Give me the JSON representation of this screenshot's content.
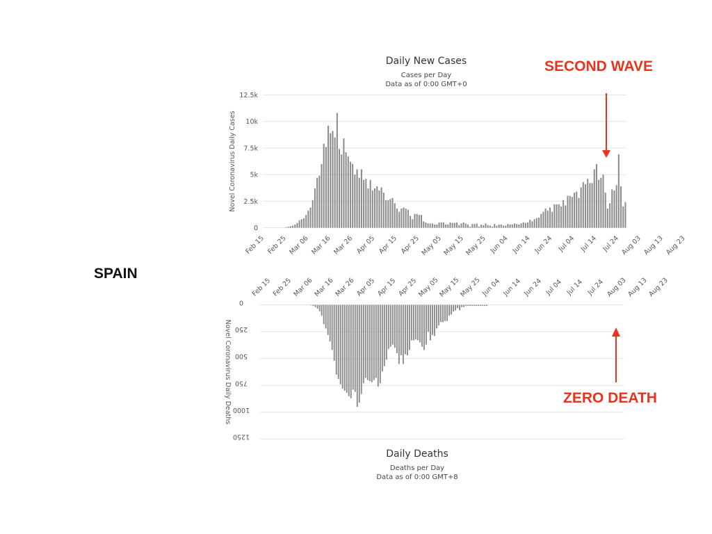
{
  "slide": {
    "country_label": "SPAIN",
    "callout_top": "SECOND WAVE",
    "callout_bottom": "ZERO DEATH",
    "accent_color": "#e8341c"
  },
  "chart_data": [
    {
      "type": "bar",
      "title": "Daily New Cases",
      "subtitle_lines": [
        "Cases per Day",
        "Data as of 0:00 GMT+0"
      ],
      "ylabel": "Novel Coronavirus Daily Cases",
      "ylim": [
        0,
        12500
      ],
      "yticks": [
        0,
        2500,
        5000,
        7500,
        10000,
        12500
      ],
      "ytick_labels": [
        "0",
        "2.5k",
        "5k",
        "7.5k",
        "10k",
        "12.5k"
      ],
      "xtick_labels": [
        "Feb 15",
        "Feb 25",
        "Mar 06",
        "Mar 16",
        "Mar 26",
        "Apr 05",
        "Apr 15",
        "Apr 25",
        "May 05",
        "May 15",
        "May 25",
        "Jun 04",
        "Jun 14",
        "Jun 24",
        "Jul 04",
        "Jul 14",
        "Jul 24",
        "Aug 03",
        "Aug 13",
        "Aug 23"
      ],
      "start_date": "2020-02-15",
      "values": [
        0,
        0,
        0,
        0,
        0,
        0,
        0,
        0,
        0,
        0,
        50,
        100,
        150,
        200,
        300,
        450,
        700,
        800,
        900,
        1200,
        1600,
        1900,
        2600,
        3700,
        4700,
        4900,
        6000,
        7900,
        7600,
        9600,
        8900,
        9100,
        8500,
        10800,
        7400,
        6900,
        8400,
        7100,
        6700,
        6200,
        6000,
        5000,
        5500,
        4700,
        5500,
        4500,
        4600,
        3700,
        4500,
        3500,
        3700,
        3900,
        3500,
        3800,
        3300,
        2600,
        2600,
        2700,
        2800,
        2300,
        1800,
        1500,
        1800,
        1900,
        1800,
        1700,
        1100,
        800,
        1300,
        1300,
        1200,
        1200,
        600,
        500,
        400,
        400,
        400,
        300,
        300,
        500,
        500,
        500,
        300,
        300,
        500,
        450,
        450,
        500,
        250,
        400,
        500,
        400,
        300,
        100,
        350,
        350,
        400,
        100,
        300,
        250,
        400,
        250,
        200,
        100,
        350,
        200,
        300,
        300,
        200,
        200,
        350,
        300,
        300,
        400,
        350,
        300,
        400,
        500,
        450,
        500,
        750,
        600,
        800,
        900,
        950,
        1300,
        1500,
        1800,
        1600,
        1900,
        1500,
        2200,
        2200,
        2200,
        2000,
        2600,
        2100,
        3000,
        3000,
        2900,
        3300,
        3400,
        2800,
        3800,
        4300,
        4100,
        4600,
        4200,
        4200,
        5500,
        6000,
        4500,
        4700,
        5000,
        3300,
        1800,
        2300,
        3600,
        3500,
        4000,
        6900,
        3900,
        2000,
        2400
      ]
    },
    {
      "type": "bar",
      "title": "Daily Deaths",
      "subtitle_lines": [
        "Deaths per Day",
        "Data as of 0:00 GMT+8"
      ],
      "ylabel": "Novel Coronavirus Daily Deaths",
      "ylim": [
        0,
        1250
      ],
      "yticks": [
        0,
        250,
        500,
        750,
        1000,
        1250
      ],
      "ytick_labels": [
        "0",
        "250",
        "500",
        "750",
        "1000",
        "1250"
      ],
      "inverted": true,
      "xtick_labels": [
        "Feb 15",
        "Feb 25",
        "Mar 06",
        "Mar 16",
        "Mar 26",
        "Apr 05",
        "Apr 15",
        "Apr 25",
        "May 05",
        "May 15",
        "May 25",
        "Jun 04",
        "Jun 14",
        "Jun 24",
        "Jul 04",
        "Jul 14",
        "Jul 24",
        "Aug 03",
        "Aug 13",
        "Aug 23"
      ],
      "start_date": "2020-02-15",
      "values": [
        0,
        0,
        0,
        0,
        0,
        0,
        0,
        0,
        0,
        0,
        0,
        0,
        0,
        0,
        0,
        0,
        0,
        0,
        0,
        0,
        0,
        0,
        0,
        0,
        5,
        10,
        20,
        35,
        60,
        100,
        180,
        220,
        280,
        340,
        420,
        520,
        650,
        690,
        740,
        780,
        800,
        820,
        850,
        870,
        790,
        810,
        950,
        910,
        830,
        730,
        680,
        700,
        710,
        720,
        700,
        680,
        760,
        730,
        620,
        570,
        510,
        410,
        390,
        370,
        400,
        450,
        550,
        470,
        550,
        460,
        470,
        420,
        330,
        330,
        320,
        330,
        350,
        390,
        420,
        370,
        250,
        330,
        280,
        290,
        220,
        190,
        160,
        160,
        150,
        150,
        100,
        90,
        60,
        50,
        30,
        50,
        20,
        20,
        10,
        10,
        10,
        10,
        10,
        10,
        10,
        10,
        10,
        10,
        10,
        0,
        0,
        0,
        0,
        0,
        0,
        0,
        0,
        0,
        0,
        0,
        0,
        0,
        0,
        0,
        0,
        0,
        0,
        0,
        0,
        0,
        0,
        0,
        0,
        0,
        0,
        0,
        0,
        0,
        0,
        0,
        0,
        0,
        0,
        0,
        0,
        0,
        0,
        0,
        0,
        0,
        0,
        0,
        0,
        0,
        0,
        0,
        0,
        0,
        0,
        0,
        0,
        0,
        0,
        0,
        0,
        0,
        0,
        0,
        0,
        0,
        0,
        0,
        0,
        0
      ]
    }
  ]
}
